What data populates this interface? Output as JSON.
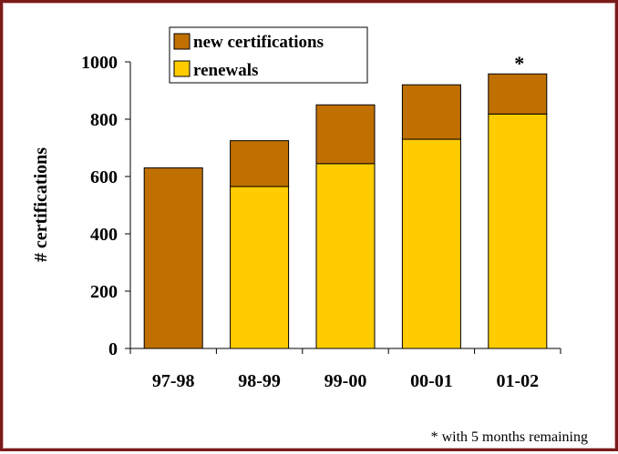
{
  "chart_data": {
    "type": "bar",
    "stacked": true,
    "categories": [
      "97-98",
      "98-99",
      "99-00",
      "00-01",
      "01-02"
    ],
    "series": [
      {
        "name": "renewals",
        "color": "#ffcc00",
        "values": [
          0,
          565,
          645,
          730,
          818
        ]
      },
      {
        "name": "new certifications",
        "color": "#c07000",
        "values": [
          630,
          160,
          205,
          190,
          140
        ]
      }
    ],
    "xlabel": "",
    "ylabel": "# certifications",
    "ylim": [
      0,
      1000
    ],
    "yticks": [
      "0",
      "200",
      "400",
      "600",
      "800",
      "1000"
    ],
    "grid": false,
    "legend_position": "top-left",
    "annotations": [
      {
        "category": "01-02",
        "text": "*"
      }
    ],
    "footnote": "* with 5 months remaining"
  }
}
